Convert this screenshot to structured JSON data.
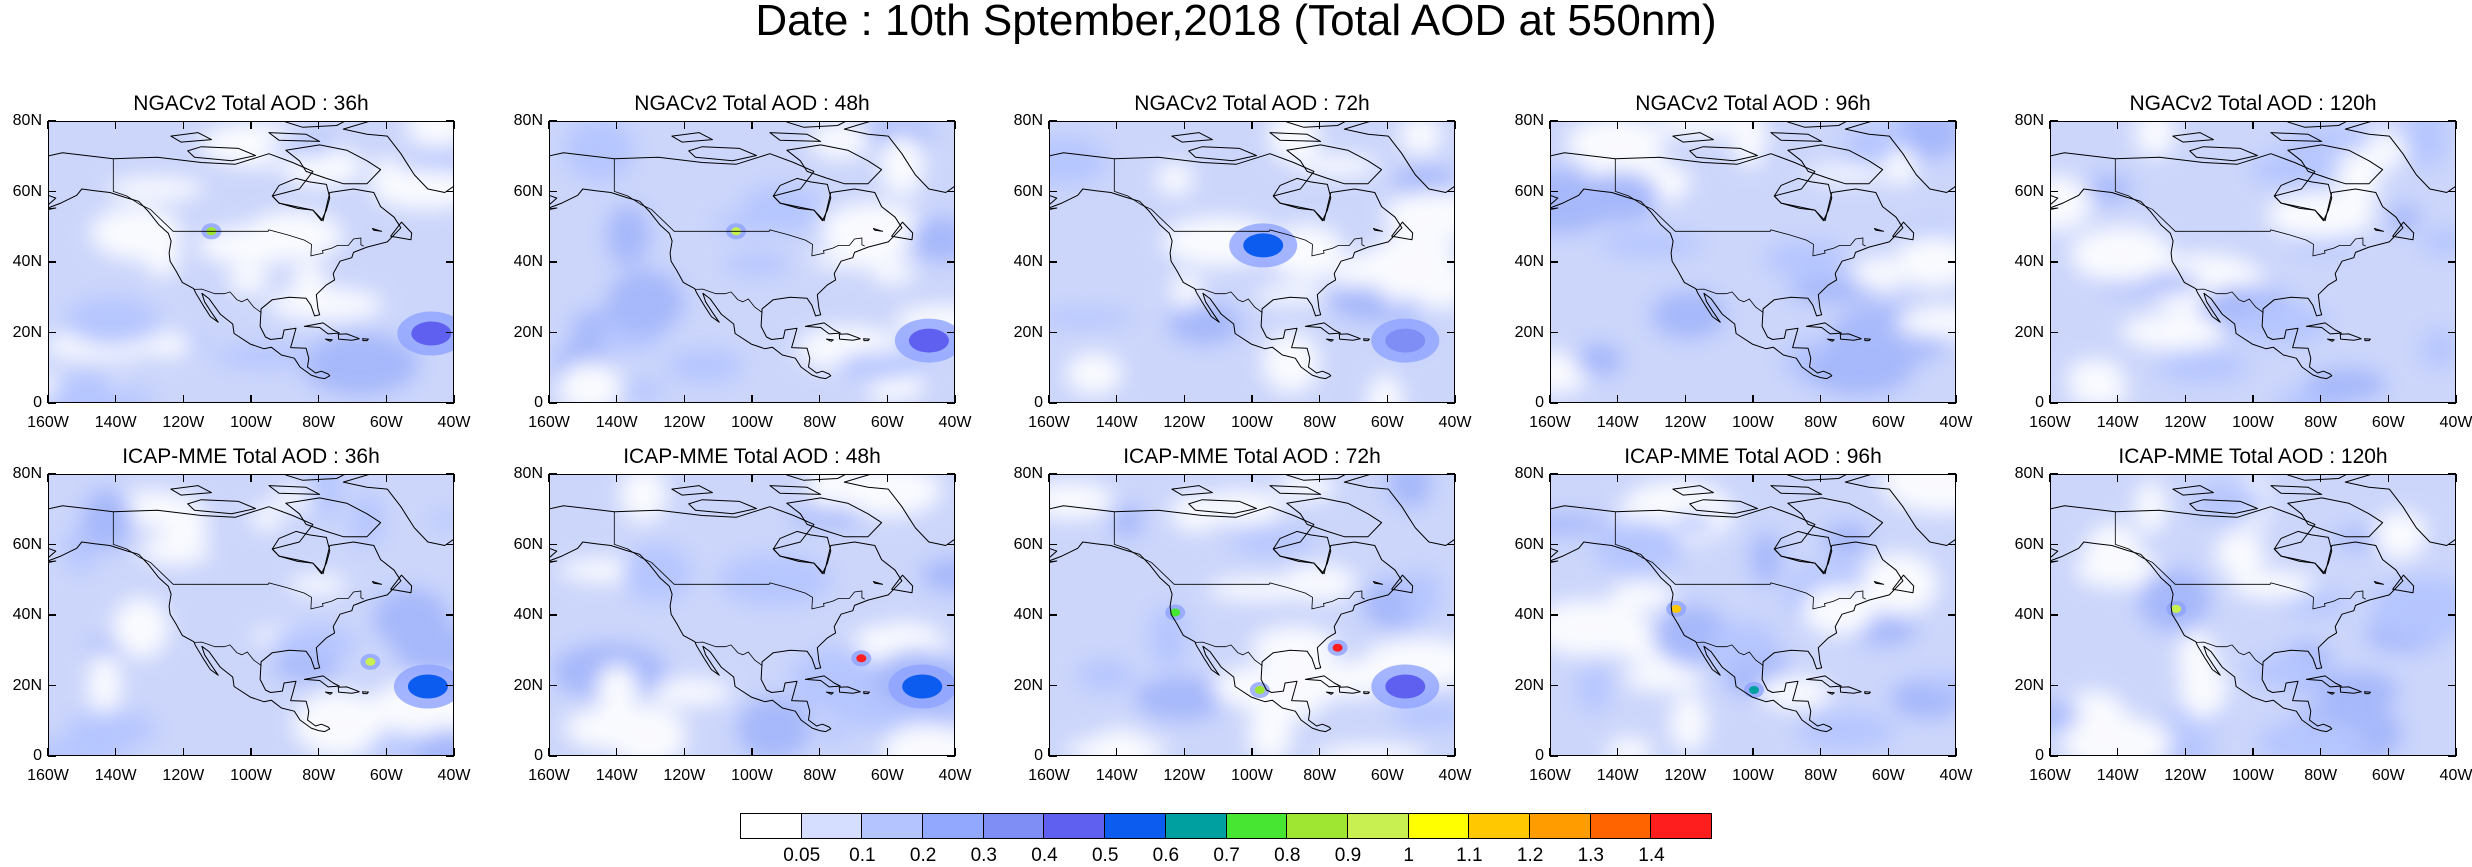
{
  "title": "Date : 10th Sptember,2018 (Total AOD at 550nm)",
  "panels": [
    {
      "title": "NGACv2 Total AOD : 36h",
      "hotspots": [
        {
          "lon": -112,
          "lat": 49,
          "value": 0.8
        },
        {
          "lon": -47,
          "lat": 20,
          "value": 0.45
        }
      ]
    },
    {
      "title": "NGACv2 Total AOD : 48h",
      "hotspots": [
        {
          "lon": -105,
          "lat": 49,
          "value": 0.9
        },
        {
          "lon": -48,
          "lat": 18,
          "value": 0.4
        }
      ]
    },
    {
      "title": "NGACv2 Total AOD : 72h",
      "hotspots": [
        {
          "lon": -97,
          "lat": 45,
          "value": 0.5
        },
        {
          "lon": -55,
          "lat": 18,
          "value": 0.3
        }
      ]
    },
    {
      "title": "NGACv2 Total AOD : 96h",
      "hotspots": []
    },
    {
      "title": "NGACv2 Total AOD : 120h",
      "hotspots": []
    },
    {
      "title": "ICAP-MME Total AOD : 36h",
      "hotspots": [
        {
          "lon": -65,
          "lat": 27,
          "value": 0.9
        },
        {
          "lon": -48,
          "lat": 20,
          "value": 0.5
        }
      ]
    },
    {
      "title": "ICAP-MME Total AOD : 48h",
      "hotspots": [
        {
          "lon": -68,
          "lat": 28,
          "value": 1.4
        },
        {
          "lon": -50,
          "lat": 20,
          "value": 0.5
        }
      ]
    },
    {
      "title": "ICAP-MME Total AOD : 72h",
      "hotspots": [
        {
          "lon": -123,
          "lat": 41,
          "value": 0.7
        },
        {
          "lon": -98,
          "lat": 19,
          "value": 0.8
        },
        {
          "lon": -75,
          "lat": 31,
          "value": 1.4
        },
        {
          "lon": -55,
          "lat": 20,
          "value": 0.4
        }
      ]
    },
    {
      "title": "ICAP-MME Total AOD : 96h",
      "hotspots": [
        {
          "lon": -123,
          "lat": 42,
          "value": 1.1
        },
        {
          "lon": -100,
          "lat": 19,
          "value": 0.6
        }
      ]
    },
    {
      "title": "ICAP-MME Total AOD : 120h",
      "hotspots": [
        {
          "lon": -123,
          "lat": 42,
          "value": 0.9
        }
      ]
    }
  ],
  "axes": {
    "x_ticks": [
      "160W",
      "140W",
      "120W",
      "100W",
      "80W",
      "60W",
      "40W"
    ],
    "y_ticks": [
      "0",
      "20N",
      "40N",
      "60N",
      "80N"
    ],
    "lon_range": [
      -160,
      -40
    ],
    "lat_range": [
      0,
      80
    ]
  },
  "colorbar": {
    "labels": [
      "0.05",
      "0.1",
      "0.2",
      "0.3",
      "0.4",
      "0.5",
      "0.6",
      "0.7",
      "0.8",
      "0.9",
      "1",
      "1.1",
      "1.2",
      "1.3",
      "1.4"
    ],
    "colors": [
      "#ffffff",
      "#d6deff",
      "#b4c4ff",
      "#92a8ff",
      "#7f8ef5",
      "#6060f0",
      "#0d5cf0",
      "#00a0a0",
      "#46e632",
      "#9ee632",
      "#c8f050",
      "#ffff00",
      "#ffc800",
      "#ff9c00",
      "#ff6400",
      "#ff1e1e"
    ]
  }
}
